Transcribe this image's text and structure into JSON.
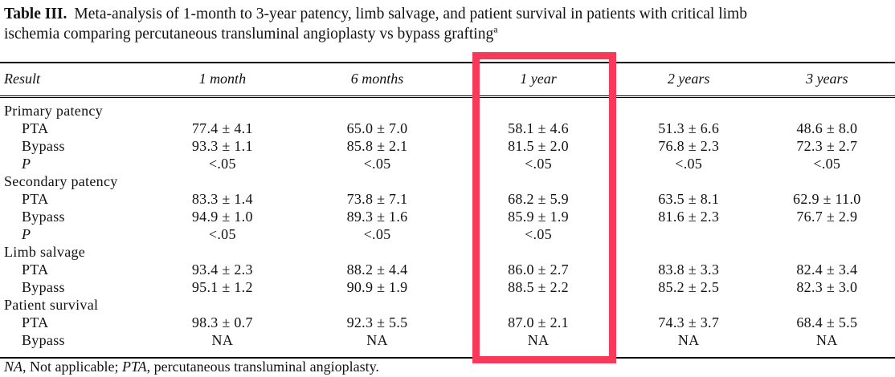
{
  "title": {
    "label": "Table III.",
    "line1": "Meta-analysis of 1-month to 3-year patency, limb salvage, and patient survival in patients with critical limb",
    "line2": "ischemia comparing percutaneous transluminal angioplasty vs bypass grafting",
    "footnote_marker": "a"
  },
  "table": {
    "columns": [
      "Result",
      "1 month",
      "6 months",
      "1 year",
      "2 years",
      "3 years"
    ],
    "sections": [
      {
        "label": "Primary patency",
        "rows": [
          {
            "label": "PTA",
            "italic": false,
            "values": [
              "77.4 ± 4.1",
              "65.0 ± 7.0",
              "58.1 ± 4.6",
              "51.3 ± 6.6",
              "48.6 ± 8.0"
            ]
          },
          {
            "label": "Bypass",
            "italic": false,
            "values": [
              "93.3 ± 1.1",
              "85.8 ± 2.1",
              "81.5 ± 2.0",
              "76.8 ± 2.3",
              "72.3 ± 2.7"
            ]
          },
          {
            "label": "P",
            "italic": true,
            "values": [
              "<.05",
              "<.05",
              "<.05",
              "<.05",
              "<.05"
            ]
          }
        ]
      },
      {
        "label": "Secondary patency",
        "rows": [
          {
            "label": "PTA",
            "italic": false,
            "values": [
              "83.3 ± 1.4",
              "73.8 ± 7.1",
              "68.2 ± 5.9",
              "63.5 ± 8.1",
              "62.9 ± 11.0"
            ]
          },
          {
            "label": "Bypass",
            "italic": false,
            "values": [
              "94.9 ± 1.0",
              "89.3 ± 1.6",
              "85.9 ± 1.9",
              "81.6 ± 2.3",
              "76.7 ± 2.9"
            ]
          },
          {
            "label": "P",
            "italic": true,
            "values": [
              "<.05",
              "<.05",
              "<.05",
              "",
              ""
            ]
          }
        ]
      },
      {
        "label": "Limb salvage",
        "rows": [
          {
            "label": "PTA",
            "italic": false,
            "values": [
              "93.4 ± 2.3",
              "88.2 ± 4.4",
              "86.0 ± 2.7",
              "83.8 ± 3.3",
              "82.4 ± 3.4"
            ]
          },
          {
            "label": "Bypass",
            "italic": false,
            "values": [
              "95.1 ± 1.2",
              "90.9 ± 1.9",
              "88.5 ± 2.2",
              "85.2 ± 2.5",
              "82.3 ± 3.0"
            ]
          }
        ]
      },
      {
        "label": "Patient survival",
        "rows": [
          {
            "label": "PTA",
            "italic": false,
            "values": [
              "98.3 ± 0.7",
              "92.3 ± 5.5",
              "87.0 ± 2.1",
              "74.3 ± 3.7",
              "68.4 ± 5.5"
            ]
          },
          {
            "label": "Bypass",
            "italic": false,
            "values": [
              "NA",
              "NA",
              "NA",
              "NA",
              "NA"
            ]
          }
        ]
      }
    ]
  },
  "footnote": {
    "na": "NA",
    "na_text": ", Not applicable; ",
    "pta": "PTA",
    "pta_text": ", percutaneous transluminal angioplasty."
  },
  "highlight": {
    "target_column": "1 year",
    "color": "#f8395a"
  }
}
